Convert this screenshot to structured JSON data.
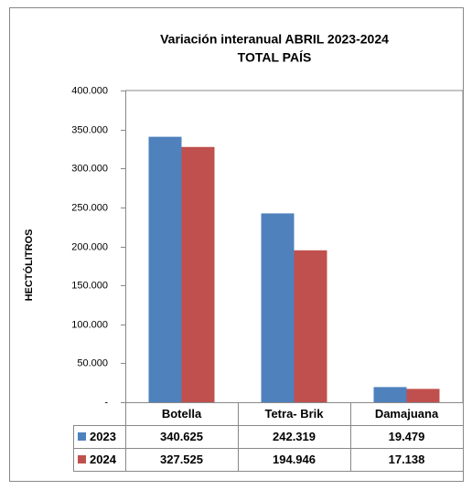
{
  "chart_data": {
    "type": "bar",
    "title": "Variación interanual  ABRIL 2023-2024",
    "subtitle": "TOTAL PAÍS",
    "y_label": "HECTÓLITROS",
    "categories": [
      "Botella",
      "Tetra- Brik",
      "Damajuana"
    ],
    "series": [
      {
        "name": "2023",
        "color": "#4f81bd",
        "values": [
          340625,
          242319,
          19479
        ],
        "value_labels": [
          "340.625",
          "242.319",
          "19.479"
        ]
      },
      {
        "name": "2024",
        "color": "#c0504d",
        "values": [
          327525,
          194946,
          17138
        ],
        "value_labels": [
          "327.525",
          "194.946",
          "17.138"
        ]
      }
    ],
    "ylim": [
      0,
      400000
    ],
    "yticks": [
      {
        "value": 0,
        "label": "-"
      },
      {
        "value": 50000,
        "label": "50.000"
      },
      {
        "value": 100000,
        "label": "100.000"
      },
      {
        "value": 150000,
        "label": "150.000"
      },
      {
        "value": 200000,
        "label": "200.000"
      },
      {
        "value": 250000,
        "label": "250.000"
      },
      {
        "value": 300000,
        "label": "300.000"
      },
      {
        "value": 350000,
        "label": "350.000"
      },
      {
        "value": 400000,
        "label": "400.000"
      }
    ],
    "grid": false
  }
}
